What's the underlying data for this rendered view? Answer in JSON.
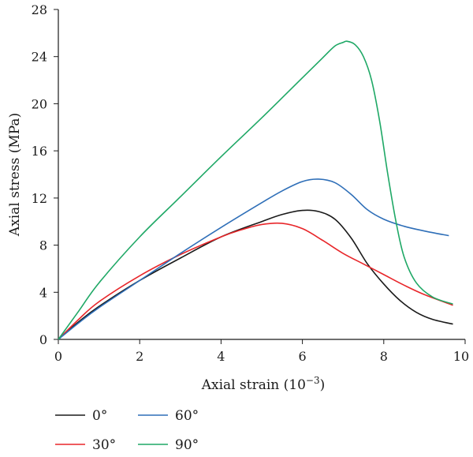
{
  "chart_data": {
    "type": "line",
    "xlabel": "Axial strain (10",
    "xlabel_exponent": "−3",
    "xlabel_close": ")",
    "ylabel": "Axial stress (MPa)",
    "xlim": [
      0,
      10
    ],
    "ylim": [
      0,
      28
    ],
    "xticks": [
      "0",
      "2",
      "4",
      "6",
      "8",
      "10"
    ],
    "yticks": [
      "0",
      "4",
      "8",
      "12",
      "16",
      "20",
      "24",
      "28"
    ],
    "grid": false,
    "legend_position": "bottom-left",
    "series": [
      {
        "name": "0°",
        "color": "#1a1a1a",
        "x": [
          0,
          0.5,
          1,
          2,
          3,
          4,
          5,
          5.5,
          6,
          6.4,
          6.8,
          7.2,
          7.6,
          8,
          8.4,
          8.8,
          9.2,
          9.7
        ],
        "y": [
          0,
          1.5,
          2.8,
          5.0,
          6.9,
          8.7,
          10.0,
          10.6,
          10.95,
          10.85,
          10.2,
          8.6,
          6.4,
          4.7,
          3.3,
          2.3,
          1.7,
          1.3
        ]
      },
      {
        "name": "30°",
        "color": "#e8262a",
        "x": [
          0,
          0.5,
          1,
          2,
          3,
          4,
          4.5,
          5,
          5.5,
          6,
          6.5,
          7,
          7.5,
          8,
          8.5,
          9,
          9.7
        ],
        "y": [
          0,
          1.7,
          3.2,
          5.4,
          7.2,
          8.7,
          9.3,
          9.75,
          9.85,
          9.4,
          8.4,
          7.3,
          6.4,
          5.5,
          4.6,
          3.8,
          2.9
        ]
      },
      {
        "name": "60°",
        "color": "#2f6fb8",
        "x": [
          0,
          0.5,
          1,
          2,
          3,
          4,
          5,
          5.5,
          6,
          6.4,
          6.8,
          7.2,
          7.6,
          8,
          8.5,
          9,
          9.6
        ],
        "y": [
          0,
          1.4,
          2.7,
          5.0,
          7.3,
          9.5,
          11.6,
          12.6,
          13.4,
          13.6,
          13.3,
          12.3,
          11.0,
          10.2,
          9.6,
          9.2,
          8.8
        ]
      },
      {
        "name": "90°",
        "color": "#1fa866",
        "x": [
          0,
          0.5,
          1,
          2,
          3,
          4,
          5,
          6,
          6.5,
          6.8,
          7.0,
          7.1,
          7.3,
          7.5,
          7.7,
          7.9,
          8.1,
          8.3,
          8.5,
          8.8,
          9.2,
          9.7
        ],
        "y": [
          0,
          2.4,
          4.8,
          8.7,
          12.1,
          15.5,
          18.8,
          22.2,
          23.9,
          24.9,
          25.2,
          25.3,
          25.0,
          24.0,
          22.0,
          18.5,
          14.0,
          10.0,
          7.0,
          4.8,
          3.6,
          3.0
        ]
      }
    ]
  }
}
